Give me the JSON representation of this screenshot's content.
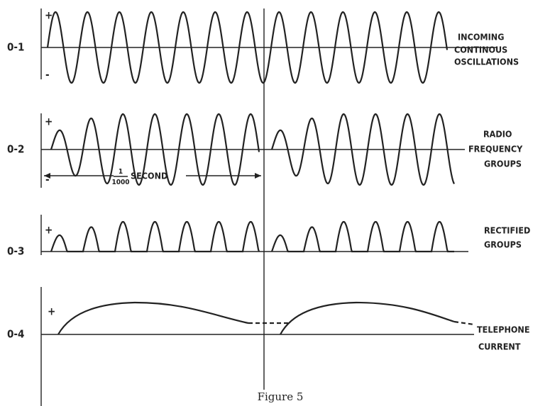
{
  "rows": [
    {
      "label": "0-1",
      "plus": "+",
      "minus": "-",
      "caption": [
        "INCOMING",
        "CONTINOUS",
        "OSCILLATIONS"
      ]
    },
    {
      "label": "0-2",
      "plus": "+",
      "minus": "-",
      "caption": [
        "RADIO",
        "FREQUENCY",
        "GROUPS"
      ]
    },
    {
      "label": "0-3",
      "plus": "+",
      "caption": [
        "RECTIFIED",
        "GROUPS"
      ]
    },
    {
      "label": "0-4",
      "plus": "+",
      "caption": [
        "TELEPHONE",
        "CURRENT"
      ]
    }
  ],
  "interval": {
    "numerator": "1",
    "denominator": "1000",
    "unit": "SECOND"
  },
  "figure_caption": "Figure 5"
}
